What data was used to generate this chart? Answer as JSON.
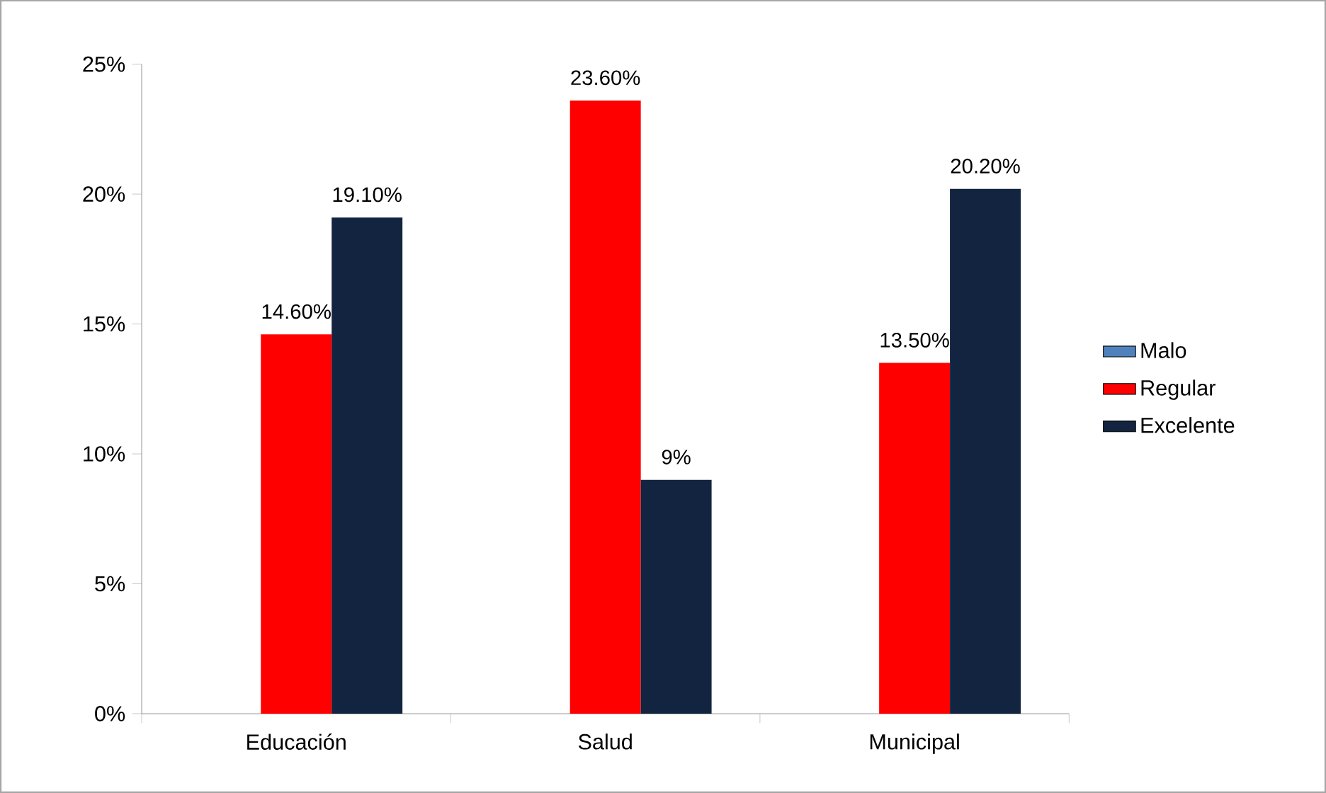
{
  "chart_data": {
    "type": "bar",
    "categories": [
      "Educación",
      "Salud",
      "Municipal"
    ],
    "series": [
      {
        "name": "Malo",
        "color": "#4f81bd",
        "values": [
          null,
          null,
          null
        ]
      },
      {
        "name": "Regular",
        "color": "#ff0000",
        "values": [
          14.6,
          23.6,
          13.5
        ],
        "value_labels": [
          "14.60%",
          "23.60%",
          "13.50%"
        ]
      },
      {
        "name": "Excelente",
        "color": "#12243f",
        "values": [
          19.1,
          9,
          20.2
        ],
        "value_labels": [
          "19.10%",
          "9%",
          "20.20%"
        ]
      }
    ],
    "ylim": [
      0,
      25
    ],
    "yticks": [
      {
        "value": 0,
        "label": "0%"
      },
      {
        "value": 5,
        "label": "5%"
      },
      {
        "value": 10,
        "label": "10%"
      },
      {
        "value": 15,
        "label": "15%"
      },
      {
        "value": 20,
        "label": "20%"
      },
      {
        "value": 25,
        "label": "25%"
      }
    ],
    "grid": false,
    "legend": "right"
  }
}
